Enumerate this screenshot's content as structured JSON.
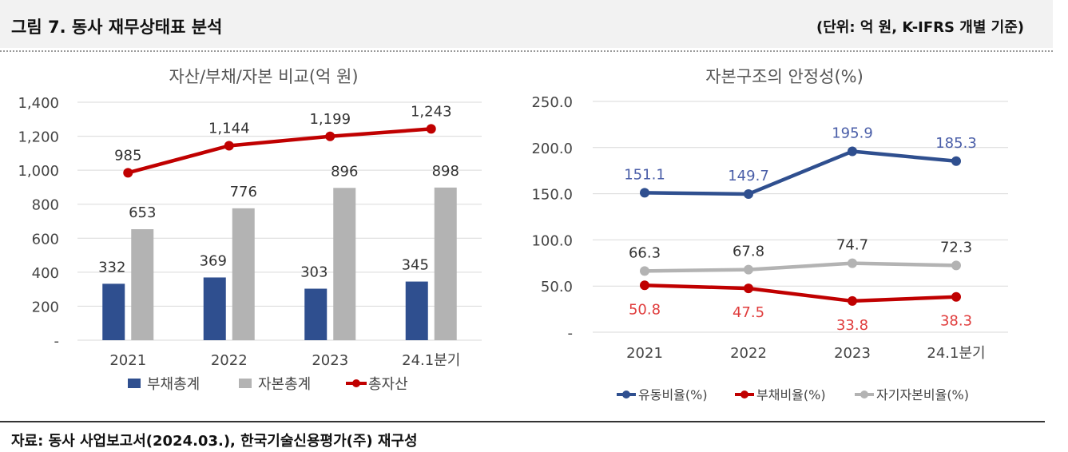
{
  "header": {
    "title": "그림 7. 동사 재무상태표 분석",
    "unit": "(단위: 억 원, K-IFRS 개별 기준)"
  },
  "footer": {
    "source": "자료: 동사  사업보고서(2024.03.),  한국기술신용평가(주)  재구성"
  },
  "colors": {
    "navy": "#2f4f8f",
    "gray": "#b3b3b3",
    "red": "#c00000",
    "blue_label": "#4a5ea8",
    "red_label": "#e03c3c"
  },
  "chart_data": [
    {
      "type": "bar",
      "title": "자산/부채/자본 비교(억 원)",
      "categories": [
        "2021",
        "2022",
        "2023",
        "24.1분기"
      ],
      "ylim": [
        0,
        1400
      ],
      "yticks": [
        "-",
        "200",
        "400",
        "600",
        "800",
        "1,000",
        "1,200",
        "1,400"
      ],
      "grid": true,
      "legend_position": "bottom",
      "series": [
        {
          "name": "부채총계",
          "type": "bar",
          "color": "#2f4f8f",
          "values": [
            332,
            369,
            303,
            345
          ],
          "labels": [
            "332",
            "369",
            "303",
            "345"
          ]
        },
        {
          "name": "자본총계",
          "type": "bar",
          "color": "#b3b3b3",
          "values": [
            653,
            776,
            896,
            898
          ],
          "labels": [
            "653",
            "776",
            "896",
            "898"
          ]
        },
        {
          "name": "총자산",
          "type": "line",
          "color": "#c00000",
          "values": [
            985,
            1144,
            1199,
            1243
          ],
          "labels": [
            "985",
            "1,144",
            "1,199",
            "1,243"
          ]
        }
      ]
    },
    {
      "type": "line",
      "title": "자본구조의 안정성(%)",
      "categories": [
        "2021",
        "2022",
        "2023",
        "24.1분기"
      ],
      "ylim": [
        0,
        250
      ],
      "yticks": [
        "-",
        "50.0",
        "100.0",
        "150.0",
        "200.0",
        "250.0"
      ],
      "grid": true,
      "legend_position": "bottom",
      "series": [
        {
          "name": "유동비율(%)",
          "color": "#2f4f8f",
          "label_color": "#4a5ea8",
          "label_position": "above",
          "values": [
            151.1,
            149.7,
            195.9,
            185.3
          ],
          "labels": [
            "151.1",
            "149.7",
            "195.9",
            "185.3"
          ]
        },
        {
          "name": "부채비율(%)",
          "color": "#c00000",
          "label_color": "#e03c3c",
          "label_position": "below",
          "values": [
            50.8,
            47.5,
            33.8,
            38.3
          ],
          "labels": [
            "50.8",
            "47.5",
            "33.8",
            "38.3"
          ]
        },
        {
          "name": "자기자본비율(%)",
          "color": "#b3b3b3",
          "label_color": "#333333",
          "label_position": "above",
          "values": [
            66.3,
            67.8,
            74.7,
            72.3
          ],
          "labels": [
            "66.3",
            "67.8",
            "74.7",
            "72.3"
          ]
        }
      ]
    }
  ]
}
